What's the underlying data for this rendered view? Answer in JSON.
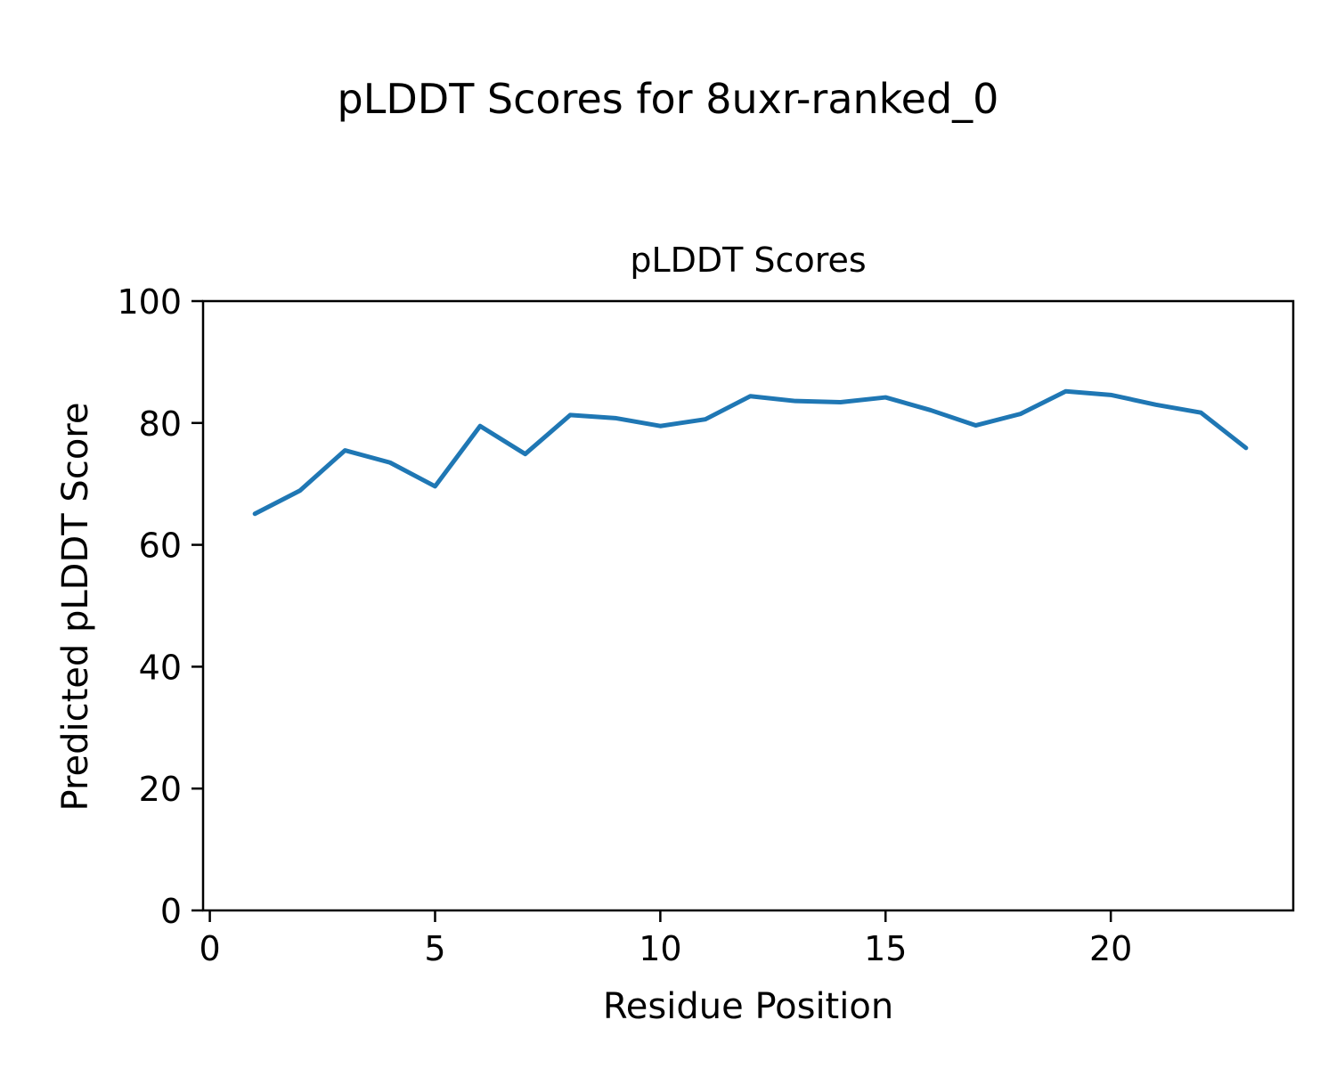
{
  "chart_data": {
    "type": "line",
    "suptitle": "pLDDT Scores for 8uxr-ranked_0",
    "title": "pLDDT Scores",
    "xlabel": "Residue Position",
    "ylabel": "Predicted pLDDT Score",
    "x": [
      1,
      2,
      3,
      4,
      5,
      6,
      7,
      8,
      9,
      10,
      11,
      12,
      13,
      14,
      15,
      16,
      17,
      18,
      19,
      20,
      21,
      22,
      23
    ],
    "y": [
      65.1,
      68.9,
      75.5,
      73.5,
      69.6,
      79.5,
      74.9,
      81.3,
      80.8,
      79.5,
      80.6,
      84.4,
      83.6,
      83.4,
      84.2,
      82.1,
      79.6,
      81.5,
      85.2,
      84.6,
      83.0,
      81.7,
      75.9
    ],
    "xlim": [
      -0.15,
      24.05
    ],
    "ylim": [
      0,
      100
    ],
    "xticks": [
      0,
      5,
      10,
      15,
      20
    ],
    "yticks": [
      0,
      20,
      40,
      60,
      80,
      100
    ],
    "line_color": "#1f77b4",
    "axis_color": "#000000",
    "grid": false,
    "legend_position": "none"
  }
}
